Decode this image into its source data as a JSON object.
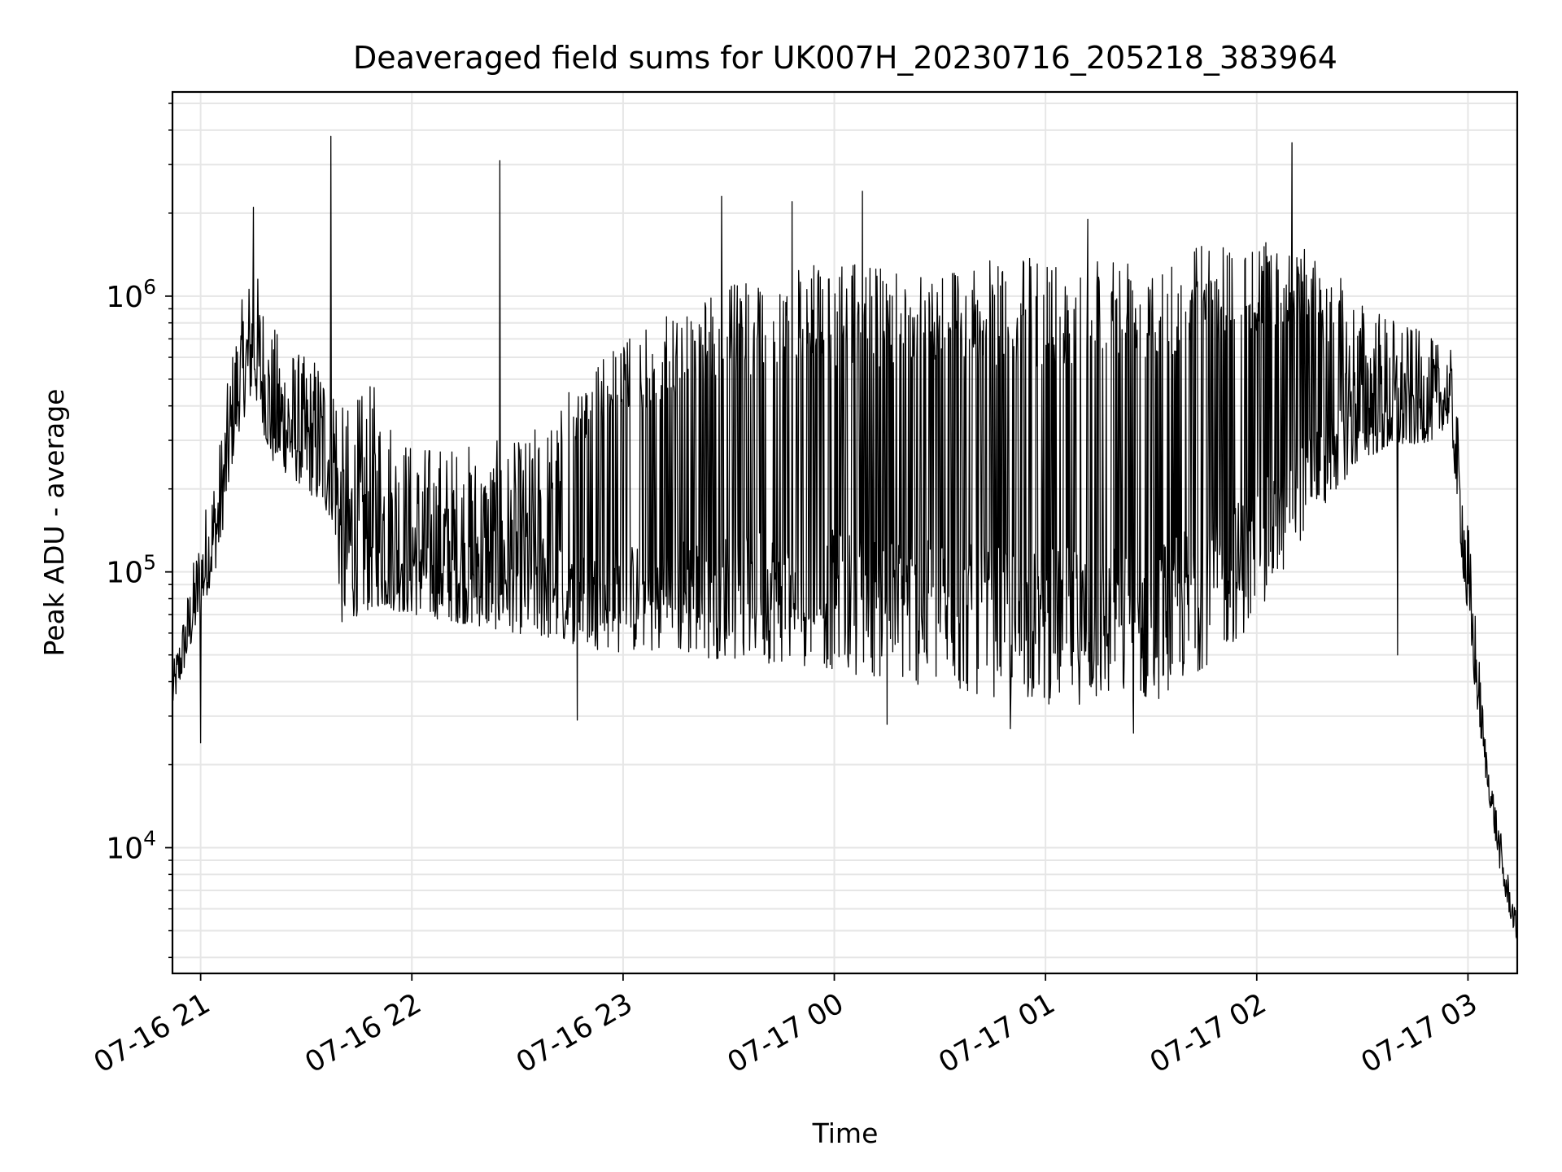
{
  "chart_data": {
    "type": "line",
    "title": "Deaveraged field sums for UK007H_20230716_205218_383964",
    "xlabel": "Time",
    "ylabel": "Peak ADU - average",
    "x_axis": "time",
    "x_range": [
      "2023-07-16 20:52",
      "2023-07-17 03:14"
    ],
    "x_ticks": [
      {
        "time": "2023-07-16 21:00",
        "label": "07-16 21"
      },
      {
        "time": "2023-07-16 22:00",
        "label": "07-16 22"
      },
      {
        "time": "2023-07-16 23:00",
        "label": "07-16 23"
      },
      {
        "time": "2023-07-17 00:00",
        "label": "07-17 00"
      },
      {
        "time": "2023-07-17 01:00",
        "label": "07-17 01"
      },
      {
        "time": "2023-07-17 02:00",
        "label": "07-17 02"
      },
      {
        "time": "2023-07-17 03:00",
        "label": "07-17 03"
      }
    ],
    "y_scale": "log",
    "ylim": [
      3500,
      5500000
    ],
    "y_ticks": [
      {
        "value": 10000,
        "base": "10",
        "exp": "4"
      },
      {
        "value": 100000,
        "base": "10",
        "exp": "5"
      },
      {
        "value": 1000000,
        "base": "10",
        "exp": "6"
      }
    ],
    "grid": true,
    "line_color": "#000000",
    "grid_color": "#e6e6e6",
    "series": [
      {
        "envelope": [
          {
            "time": "2023-07-16 20:52",
            "low": 32000,
            "high": 45000
          },
          {
            "time": "2023-07-16 21:00",
            "low": 70000,
            "high": 150000
          },
          {
            "time": "2023-07-16 21:05",
            "low": 110000,
            "high": 280000
          },
          {
            "time": "2023-07-16 21:10",
            "low": 300000,
            "high": 800000
          },
          {
            "time": "2023-07-16 21:15",
            "low": 450000,
            "high": 1400000
          },
          {
            "time": "2023-07-16 21:20",
            "low": 250000,
            "high": 800000
          },
          {
            "time": "2023-07-16 21:30",
            "low": 200000,
            "high": 600000
          },
          {
            "time": "2023-07-16 21:38",
            "low": 150000,
            "high": 700000
          },
          {
            "time": "2023-07-16 21:40",
            "low": 65000,
            "high": 400000
          },
          {
            "time": "2023-07-16 21:50",
            "low": 75000,
            "high": 500000
          },
          {
            "time": "2023-07-16 22:00",
            "low": 70000,
            "high": 300000
          },
          {
            "time": "2023-07-16 22:30",
            "low": 60000,
            "high": 300000
          },
          {
            "time": "2023-07-16 23:00",
            "low": 50000,
            "high": 700000
          },
          {
            "time": "2023-07-16 23:30",
            "low": 48000,
            "high": 1100000
          },
          {
            "time": "2023-07-16 23:55",
            "low": 45000,
            "high": 1300000
          },
          {
            "time": "2023-07-17 00:30",
            "low": 37000,
            "high": 1300000
          },
          {
            "time": "2023-07-17 01:00",
            "low": 33000,
            "high": 1400000
          },
          {
            "time": "2023-07-17 01:30",
            "low": 33000,
            "high": 1500000
          },
          {
            "time": "2023-07-17 01:45",
            "low": 45000,
            "high": 1600000
          },
          {
            "time": "2023-07-17 02:00",
            "low": 65000,
            "high": 1600000
          },
          {
            "time": "2023-07-17 02:15",
            "low": 150000,
            "high": 1500000
          },
          {
            "time": "2023-07-17 02:30",
            "low": 260000,
            "high": 1000000
          },
          {
            "time": "2023-07-17 02:50",
            "low": 300000,
            "high": 700000
          },
          {
            "time": "2023-07-17 02:55",
            "low": 350000,
            "high": 650000
          },
          {
            "time": "2023-07-17 03:00",
            "low": 60000,
            "high": 160000
          },
          {
            "time": "2023-07-17 03:05",
            "low": 18000,
            "high": 25000
          },
          {
            "time": "2023-07-17 03:10",
            "low": 7000,
            "high": 10000
          },
          {
            "time": "2023-07-17 03:14",
            "low": 4500,
            "high": 5500
          }
        ],
        "peaks": [
          {
            "time": "2023-07-16 21:15",
            "value": 2100000
          },
          {
            "time": "2023-07-16 21:37",
            "value": 3800000
          },
          {
            "time": "2023-07-16 22:25",
            "value": 3100000
          },
          {
            "time": "2023-07-16 23:28",
            "value": 2300000
          },
          {
            "time": "2023-07-16 23:48",
            "value": 2200000
          },
          {
            "time": "2023-07-17 00:08",
            "value": 2400000
          },
          {
            "time": "2023-07-17 01:12",
            "value": 1900000
          },
          {
            "time": "2023-07-17 02:10",
            "value": 3600000
          }
        ],
        "dips": [
          {
            "time": "2023-07-16 21:00",
            "value": 24000
          },
          {
            "time": "2023-07-16 22:47",
            "value": 29000
          },
          {
            "time": "2023-07-17 00:15",
            "value": 28000
          },
          {
            "time": "2023-07-17 00:50",
            "value": 27000
          },
          {
            "time": "2023-07-17 01:25",
            "value": 26000
          },
          {
            "time": "2023-07-17 02:40",
            "value": 50000
          }
        ]
      }
    ]
  }
}
